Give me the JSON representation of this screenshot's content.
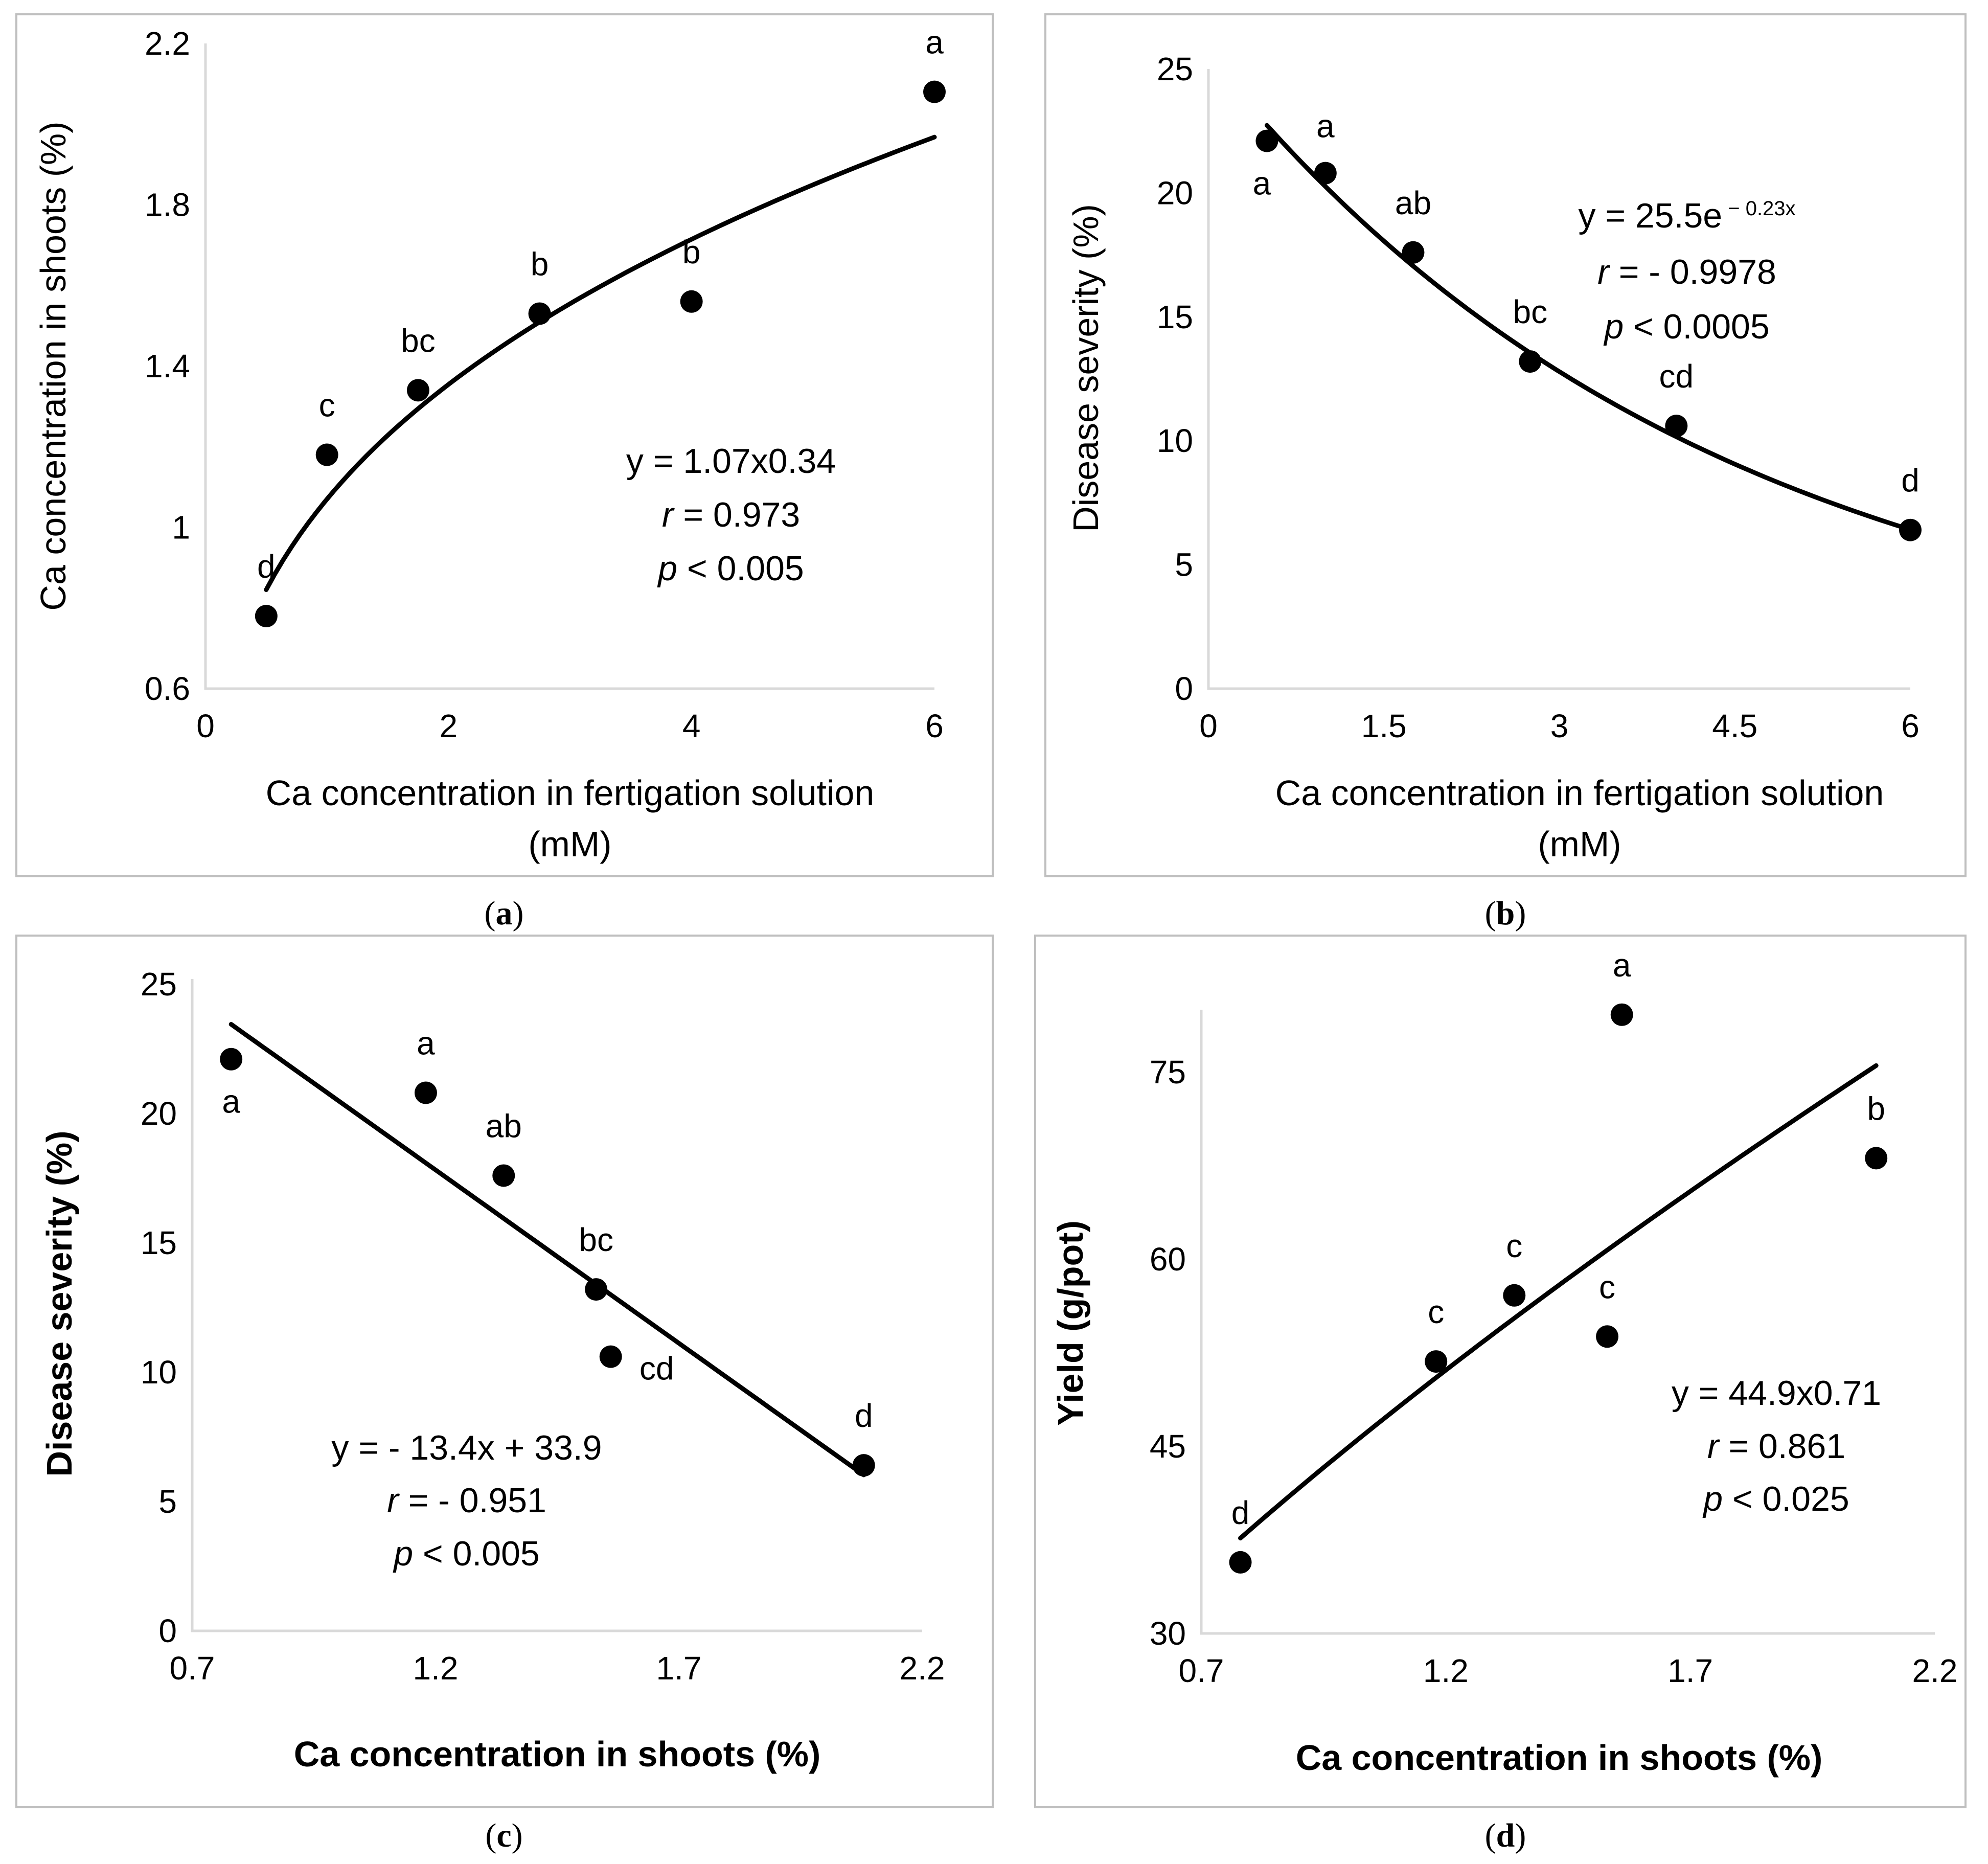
{
  "chart_data": [
    {
      "id": "a",
      "type": "scatter",
      "caption": "a",
      "xlabel_lines": [
        "Ca concentration in fertigation solution",
        "(mM)"
      ],
      "ylabel": "Ca concentration in shoots (%)",
      "xlim": [
        0,
        6
      ],
      "ylim": [
        0.6,
        2.2
      ],
      "xticks": [
        0,
        2,
        4,
        6
      ],
      "xtick_labels": [
        "0",
        "2",
        "4",
        "6"
      ],
      "yticks": [
        0.6,
        1.0,
        1.4,
        1.8,
        2.2
      ],
      "ytick_labels": [
        "0.6",
        "1",
        "1.4",
        "1.8",
        "2.2"
      ],
      "points": [
        {
          "x": 0.5,
          "y": 0.78,
          "label": "d"
        },
        {
          "x": 1.0,
          "y": 1.18,
          "label": "c"
        },
        {
          "x": 1.75,
          "y": 1.34,
          "label": "bc"
        },
        {
          "x": 2.75,
          "y": 1.53,
          "label": "b"
        },
        {
          "x": 4.0,
          "y": 1.56,
          "label": "b"
        },
        {
          "x": 6.0,
          "y": 2.08,
          "label": "a"
        }
      ],
      "fit": {
        "kind": "power",
        "a": 1.07,
        "b": 0.34,
        "x_from": 0.5,
        "x_to": 6.0
      },
      "equation": {
        "line1": "y = 1.07x0.34",
        "r_sym": "r",
        "r_val": " = 0.973",
        "p_sym": "p",
        "p_val": " < 0.005"
      }
    },
    {
      "id": "b",
      "type": "scatter",
      "caption": "b",
      "xlabel_lines": [
        "Ca concentration in fertigation solution",
        "(mM)"
      ],
      "ylabel": "Disease severity (%)",
      "xlim": [
        0,
        6
      ],
      "ylim": [
        0,
        25
      ],
      "xticks": [
        0,
        1.5,
        3,
        4.5,
        6
      ],
      "xtick_labels": [
        "0",
        "1.5",
        "3",
        "4.5",
        "6"
      ],
      "yticks": [
        0,
        5,
        10,
        15,
        20,
        25
      ],
      "ytick_labels": [
        "0",
        "5",
        "10",
        "15",
        "20",
        "25"
      ],
      "points": [
        {
          "x": 0.5,
          "y": 22.1,
          "label": "a"
        },
        {
          "x": 1.0,
          "y": 20.8,
          "label": "a"
        },
        {
          "x": 1.75,
          "y": 17.6,
          "label": "ab"
        },
        {
          "x": 2.75,
          "y": 13.2,
          "label": "bc"
        },
        {
          "x": 4.0,
          "y": 10.6,
          "label": "cd"
        },
        {
          "x": 6.0,
          "y": 6.4,
          "label": "d"
        }
      ],
      "fit": {
        "kind": "exp",
        "a": 25.5,
        "b": -0.23,
        "x_from": 0.5,
        "x_to": 6.0
      },
      "equation": {
        "line1_base": "y = 25.5e",
        "line1_exp": " − 0.23x",
        "r_sym": "r",
        "r_val": " = - 0.9978",
        "p_sym": "p",
        "p_val": " < 0.0005"
      }
    },
    {
      "id": "c",
      "type": "scatter",
      "caption": "c",
      "xlabel": "Ca concentration in shoots (%)",
      "ylabel": "Disease severity (%)",
      "xlim": [
        0.7,
        2.2
      ],
      "ylim": [
        0,
        25
      ],
      "xticks": [
        0.7,
        1.2,
        1.7,
        2.2
      ],
      "xtick_labels": [
        "0.7",
        "1.2",
        "1.7",
        "2.2"
      ],
      "yticks": [
        0,
        5,
        10,
        15,
        20,
        25
      ],
      "ytick_labels": [
        "0",
        "5",
        "10",
        "15",
        "20",
        "25"
      ],
      "points": [
        {
          "x": 0.78,
          "y": 22.1,
          "label": "a"
        },
        {
          "x": 1.18,
          "y": 20.8,
          "label": "a"
        },
        {
          "x": 1.34,
          "y": 17.6,
          "label": "ab"
        },
        {
          "x": 1.53,
          "y": 13.2,
          "label": "bc"
        },
        {
          "x": 1.56,
          "y": 10.6,
          "label": "cd"
        },
        {
          "x": 2.08,
          "y": 6.4,
          "label": "d"
        }
      ],
      "fit": {
        "kind": "linear",
        "m": -13.4,
        "c": 33.9,
        "x_from": 0.78,
        "x_to": 2.08
      },
      "equation": {
        "line1": "y = - 13.4x + 33.9",
        "r_sym": "r",
        "r_val": " = - 0.951",
        "p_sym": "p",
        "p_val": " < 0.005"
      }
    },
    {
      "id": "d",
      "type": "scatter",
      "caption": "d",
      "xlabel": "Ca concentration in shoots (%)",
      "ylabel": "Yield (g/pot)",
      "xlim": [
        0.7,
        2.2
      ],
      "ylim": [
        30,
        80
      ],
      "xticks": [
        0.7,
        1.2,
        1.7,
        2.2
      ],
      "xtick_labels": [
        "0.7",
        "1.2",
        "1.7",
        "2.2"
      ],
      "yticks": [
        30,
        45,
        60,
        75
      ],
      "ytick_labels": [
        "30",
        "45",
        "60",
        "75"
      ],
      "points": [
        {
          "x": 0.78,
          "y": 35.7,
          "label": "d"
        },
        {
          "x": 1.18,
          "y": 51.8,
          "label": "c"
        },
        {
          "x": 1.34,
          "y": 57.1,
          "label": "c"
        },
        {
          "x": 1.53,
          "y": 53.8,
          "label": "c"
        },
        {
          "x": 1.56,
          "y": 79.6,
          "label": "a"
        },
        {
          "x": 2.08,
          "y": 68.1,
          "label": "b"
        }
      ],
      "fit": {
        "kind": "power",
        "a": 44.9,
        "b": 0.71,
        "x_from": 0.78,
        "x_to": 2.08
      },
      "equation": {
        "line1": "y = 44.9x0.71",
        "r_sym": "r",
        "r_val": " = 0.861",
        "p_sym": "p",
        "p_val": " < 0.025"
      }
    }
  ]
}
